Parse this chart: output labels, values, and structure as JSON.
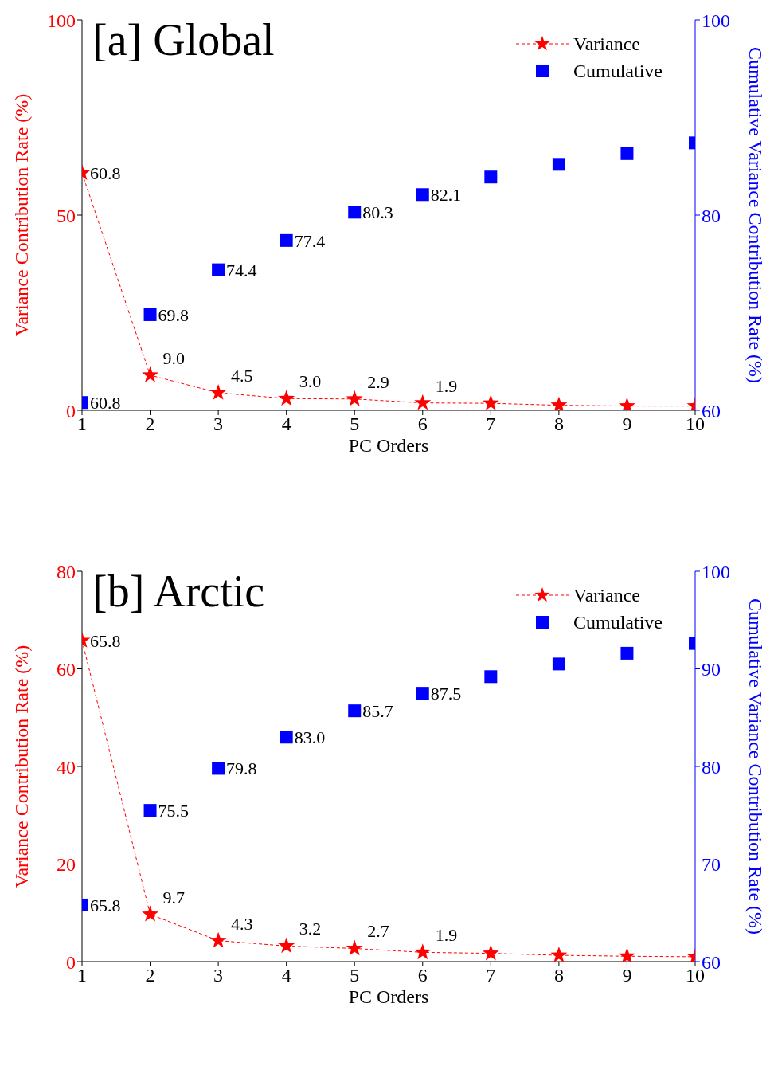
{
  "chart_data": [
    {
      "type": "line",
      "title": "[a] Global",
      "xlabel": "PC Orders",
      "ylabel": "Variance Contribution Rate (%)",
      "y2label": "Cumulative Variance Contribution Rate (%)",
      "x": [
        1,
        2,
        3,
        4,
        5,
        6,
        7,
        8,
        9,
        10
      ],
      "xlim": [
        1,
        10
      ],
      "xticks": [
        1,
        2,
        3,
        4,
        5,
        6,
        7,
        8,
        9,
        10
      ],
      "ylim": [
        0,
        100
      ],
      "yticks": [
        0,
        50,
        100
      ],
      "y2lim": [
        60,
        100
      ],
      "y2ticks": [
        60,
        80,
        100
      ],
      "grid": false,
      "legend": "top right",
      "series": [
        {
          "name": "Variance",
          "color": "#ff0000",
          "marker": "star",
          "line_style": "dashed",
          "values": [
            60.8,
            9.0,
            4.5,
            3.0,
            2.9,
            1.9,
            1.8,
            1.3,
            1.1,
            1.1
          ],
          "value_labels": [
            "60.8",
            "9.0",
            "4.5",
            "3.0",
            "2.9",
            "1.9",
            null,
            null,
            null,
            null
          ]
        },
        {
          "name": "Cumulative",
          "type": "scatter",
          "axis": "y2",
          "color": "#0000ff",
          "marker": "square",
          "values": [
            60.8,
            69.8,
            74.4,
            77.4,
            80.3,
            82.1,
            83.9,
            85.2,
            86.3,
            87.4
          ],
          "value_labels": [
            "60.8",
            "69.8",
            "74.4",
            "77.4",
            "80.3",
            "82.1",
            null,
            null,
            null,
            null
          ]
        }
      ]
    },
    {
      "type": "line",
      "title": "[b] Arctic",
      "xlabel": "PC Orders",
      "ylabel": "Variance Contribution Rate (%)",
      "y2label": "Cumulative Variance Contribution Rate (%)",
      "x": [
        1,
        2,
        3,
        4,
        5,
        6,
        7,
        8,
        9,
        10
      ],
      "xlim": [
        1,
        10
      ],
      "xticks": [
        1,
        2,
        3,
        4,
        5,
        6,
        7,
        8,
        9,
        10
      ],
      "ylim": [
        0,
        80
      ],
      "yticks": [
        0,
        20,
        40,
        60,
        80
      ],
      "y2lim": [
        60,
        100
      ],
      "y2ticks": [
        60,
        70,
        80,
        90,
        100
      ],
      "grid": false,
      "legend": "top right",
      "series": [
        {
          "name": "Variance",
          "color": "#ff0000",
          "marker": "star",
          "line_style": "dashed",
          "values": [
            65.8,
            9.7,
            4.3,
            3.2,
            2.7,
            1.9,
            1.7,
            1.3,
            1.1,
            1.0
          ],
          "value_labels": [
            "65.8",
            "9.7",
            "4.3",
            "3.2",
            "2.7",
            "1.9",
            null,
            null,
            null,
            null
          ]
        },
        {
          "name": "Cumulative",
          "type": "scatter",
          "axis": "y2",
          "color": "#0000ff",
          "marker": "square",
          "values": [
            65.8,
            75.5,
            79.8,
            83.0,
            85.7,
            87.5,
            89.2,
            90.5,
            91.6,
            92.6
          ],
          "value_labels": [
            "65.8",
            "75.5",
            "79.8",
            "83.0",
            "85.7",
            "87.5",
            null,
            null,
            null,
            null
          ]
        }
      ]
    }
  ]
}
